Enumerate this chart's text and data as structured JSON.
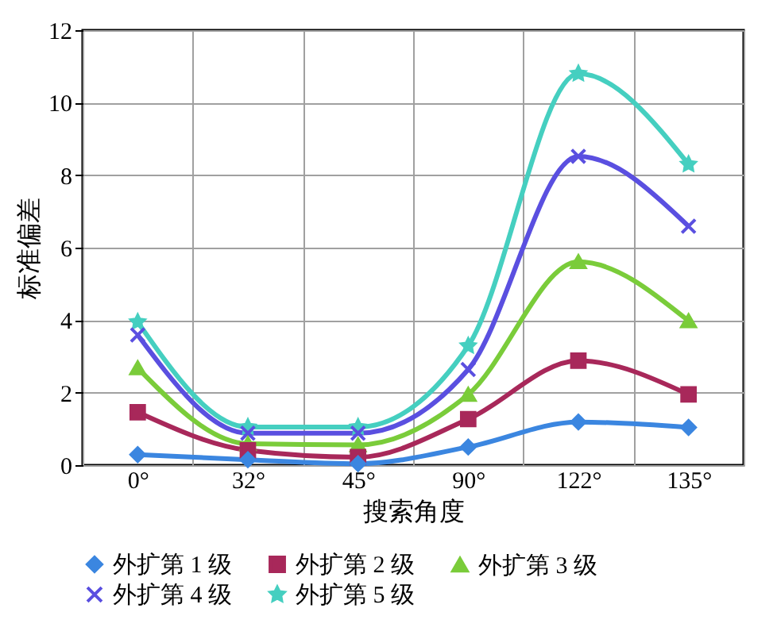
{
  "chart_data": {
    "type": "line",
    "xlabel": "搜索角度",
    "ylabel": "标准偏差",
    "categories": [
      "0°",
      "32°",
      "45°",
      "90°",
      "122°",
      "135°"
    ],
    "ylim": [
      0,
      12
    ],
    "yticks": [
      0,
      2,
      4,
      6,
      8,
      10,
      12
    ],
    "grid": true,
    "legend": "bottom",
    "series": [
      {
        "name": "外扩第 1 级",
        "color": "#3b86e0",
        "marker": "diamond",
        "values": [
          0.29,
          0.15,
          0.04,
          0.5,
          1.19,
          1.04
        ]
      },
      {
        "name": "外扩第 2 级",
        "color": "#a8285a",
        "marker": "square",
        "values": [
          1.46,
          0.41,
          0.22,
          1.27,
          2.88,
          1.95
        ]
      },
      {
        "name": "外扩第 3 级",
        "color": "#7acc3a",
        "marker": "triangle",
        "values": [
          2.68,
          0.59,
          0.56,
          1.95,
          5.61,
          3.98
        ]
      },
      {
        "name": "外扩第 4 级",
        "color": "#5a4fe0",
        "marker": "cross",
        "values": [
          3.59,
          0.88,
          0.88,
          2.64,
          8.52,
          6.59
        ]
      },
      {
        "name": "外扩第 5 级",
        "color": "#45cfc0",
        "marker": "star",
        "values": [
          3.95,
          1.05,
          1.05,
          3.29,
          10.8,
          8.3
        ]
      }
    ]
  }
}
